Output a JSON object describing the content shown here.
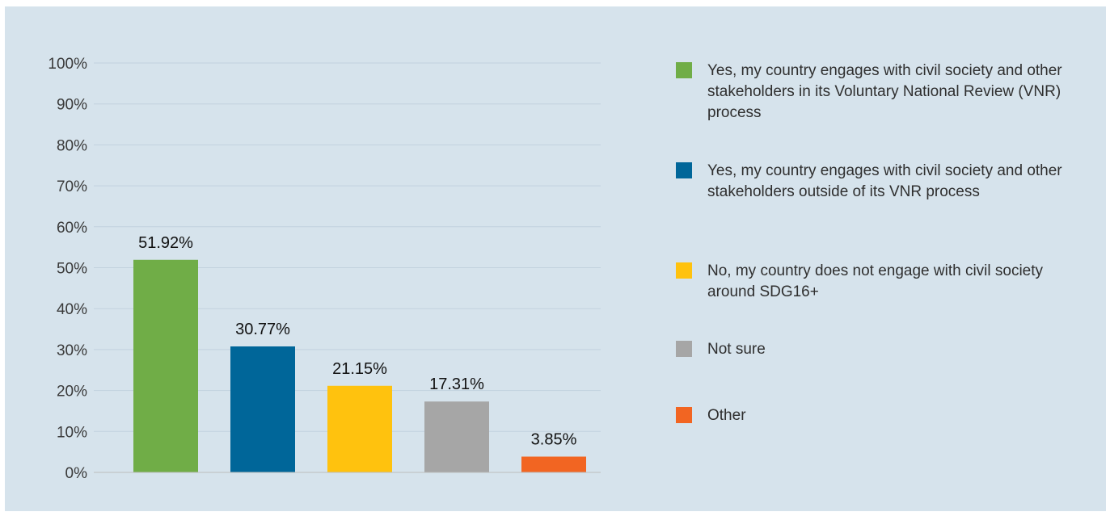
{
  "chart_data": {
    "type": "bar",
    "categories": [
      "Yes, my country engages with civil society and other stakeholders in its Voluntary National Review (VNR) process",
      "Yes, my country engages with civil society and other stakeholders outside of its VNR process",
      "No, my country does not engage with civil society around SDG16+",
      "Not sure",
      "Other"
    ],
    "values": [
      51.92,
      30.77,
      21.15,
      17.31,
      3.85
    ],
    "value_labels": [
      "51.92%",
      "30.77%",
      "21.15%",
      "17.31%",
      "3.85%"
    ],
    "colors": [
      "#70ad47",
      "#006699",
      "#ffc20e",
      "#a6a6a6",
      "#f26522"
    ],
    "ylim": [
      0,
      100
    ],
    "yticks": [
      0,
      10,
      20,
      30,
      40,
      50,
      60,
      70,
      80,
      90,
      100
    ],
    "ytick_labels": [
      "0%",
      "10%",
      "20%",
      "30%",
      "40%",
      "50%",
      "60%",
      "70%",
      "80%",
      "90%",
      "100%"
    ],
    "grid": true,
    "legend_position": "right",
    "gridline_color": "#c2d2de",
    "axis_color": "#bcbcbc",
    "background_color": "#d6e3ec"
  }
}
